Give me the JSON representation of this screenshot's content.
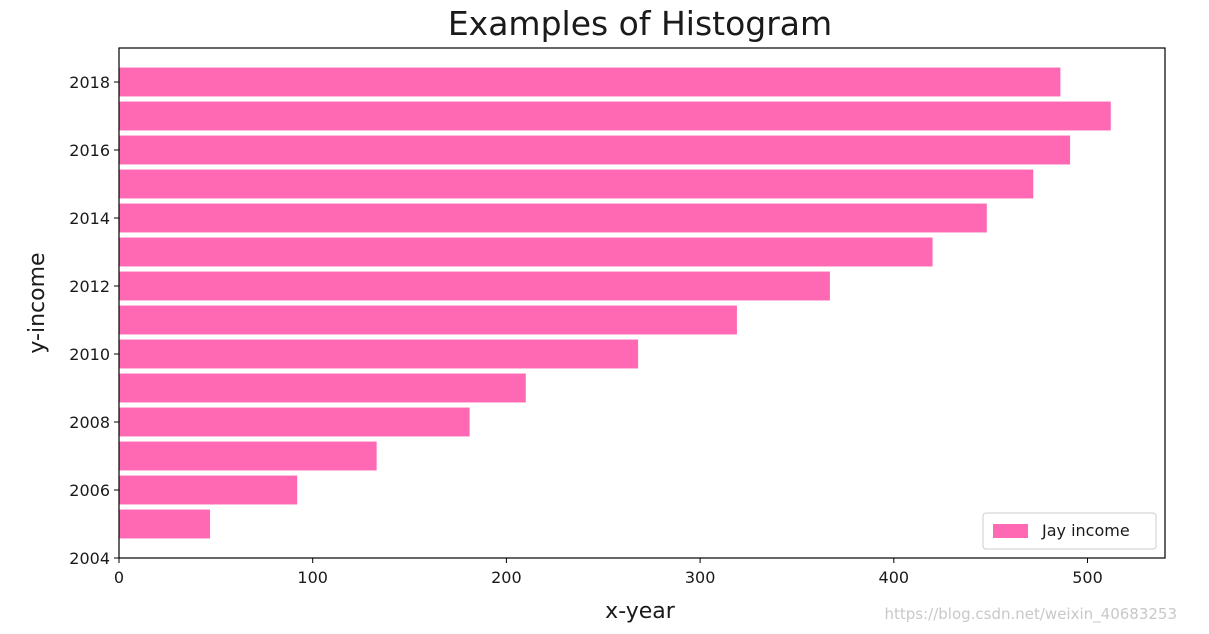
{
  "chart_data": {
    "type": "bar",
    "orientation": "horizontal",
    "title": "Examples of Histogram",
    "xlabel": "x-year",
    "ylabel": "y-income",
    "categories": [
      2005,
      2006,
      2007,
      2008,
      2009,
      2010,
      2011,
      2012,
      2013,
      2014,
      2015,
      2016,
      2017,
      2018
    ],
    "series": [
      {
        "name": "Jay income",
        "color": "#ff69b4",
        "values": [
          47,
          92,
          133,
          181,
          210,
          268,
          319,
          367,
          420,
          448,
          472,
          491,
          512,
          486
        ]
      }
    ],
    "xlim": [
      0,
      540
    ],
    "ylim": [
      2004,
      2019
    ],
    "xticks": [
      0,
      100,
      200,
      300,
      400,
      500
    ],
    "yticks": [
      2004,
      2006,
      2008,
      2010,
      2012,
      2014,
      2016,
      2018
    ],
    "legend": "lower-right",
    "grid": false
  },
  "watermark": "https://blog.csdn.net/weixin_40683253"
}
